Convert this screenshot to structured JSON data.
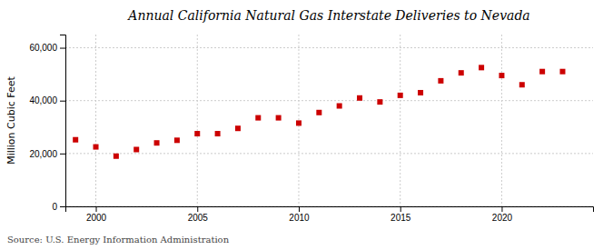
{
  "chart_data": {
    "type": "scatter",
    "title": "Annual California Natural Gas Interstate Deliveries to Nevada",
    "y_label": "Million Cubic Feet",
    "annotations": [
      "Source: U.S. Energy Information Administration"
    ],
    "x": [
      1999,
      2000,
      2001,
      2002,
      2003,
      2004,
      2005,
      2006,
      2007,
      2008,
      2009,
      2010,
      2011,
      2012,
      2013,
      2014,
      2015,
      2016,
      2017,
      2018,
      2019,
      2020,
      2021,
      2022,
      2023
    ],
    "values": [
      25200,
      22500,
      19000,
      21500,
      24000,
      25000,
      27500,
      27500,
      29500,
      33500,
      33500,
      31500,
      35500,
      38000,
      41000,
      39500,
      42000,
      43000,
      47500,
      50500,
      52500,
      49500,
      46000,
      51000,
      51000
    ],
    "color": "#cc0000",
    "marker": "square",
    "xlim": [
      1998.5,
      2024.5
    ],
    "xticks": [
      2000,
      2005,
      2010,
      2015,
      2020
    ],
    "ylim": [
      0,
      65000
    ],
    "yticks": [
      0,
      {
        "value": 20000,
        "label": "20,000"
      },
      {
        "value": 40000,
        "label": "40,000"
      },
      {
        "value": 60000,
        "label": "60,000"
      }
    ],
    "grid": true
  }
}
